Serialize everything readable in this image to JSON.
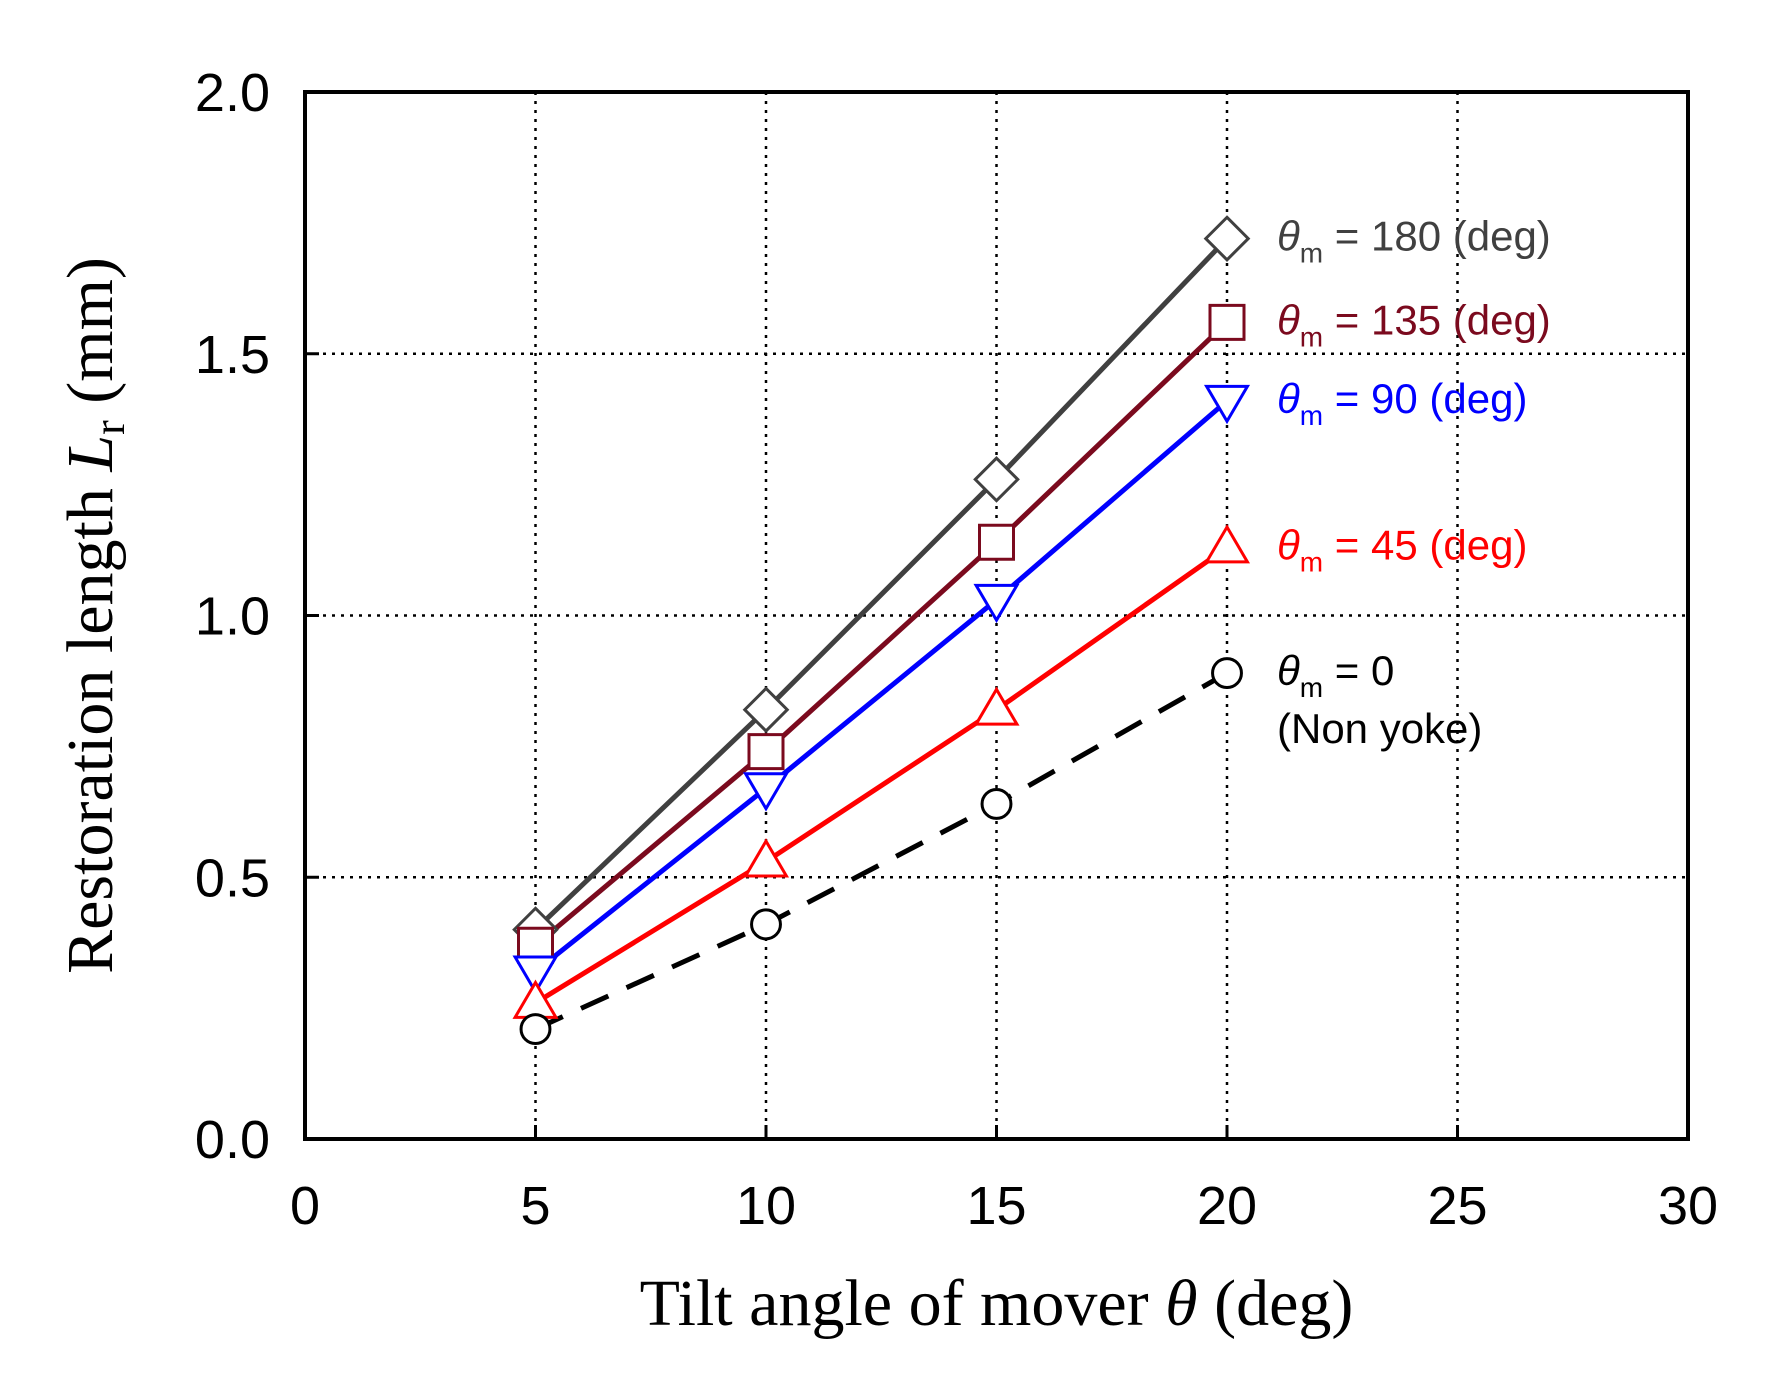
{
  "chart_data": {
    "type": "line",
    "title": "",
    "xlabel": {
      "main": "Tilt angle of mover ",
      "symbol": "θ",
      "unit": " (deg)"
    },
    "ylabel": {
      "main": "Restoration length ",
      "symbol": "L",
      "subscript": "r",
      "unit": " (mm)"
    },
    "xlim": [
      0,
      30
    ],
    "ylim": [
      0.0,
      2.0
    ],
    "x_ticks": [
      0,
      5,
      10,
      15,
      20,
      25,
      30
    ],
    "x_tick_labels": [
      "0",
      "5",
      "10",
      "15",
      "20",
      "25",
      "30"
    ],
    "y_ticks": [
      0.0,
      0.5,
      1.0,
      1.5,
      2.0
    ],
    "y_tick_labels": [
      "0.0",
      "0.5",
      "1.0",
      "1.5",
      "2.0"
    ],
    "grid": true,
    "x": [
      5,
      10,
      15,
      20
    ],
    "series": [
      {
        "name": "θm = 180 (deg)",
        "label_main": "θ",
        "label_sub": "m",
        "label_rest": " = 180 (deg)",
        "label_line2": "",
        "color": "#404040",
        "marker": "diamond",
        "dashed": false,
        "values": [
          0.4,
          0.82,
          1.26,
          1.72
        ]
      },
      {
        "name": "θm = 135 (deg)",
        "label_main": "θ",
        "label_sub": "m",
        "label_rest": " = 135 (deg)",
        "label_line2": "",
        "color": "#7b0a1e",
        "marker": "square",
        "dashed": false,
        "values": [
          0.37,
          0.74,
          1.14,
          1.56
        ]
      },
      {
        "name": "θm = 90 (deg)",
        "label_main": "θ",
        "label_sub": "m",
        "label_rest": " = 90 (deg)",
        "label_line2": "",
        "color": "#0000ff",
        "marker": "triangle-down",
        "dashed": false,
        "values": [
          0.32,
          0.67,
          1.03,
          1.41
        ]
      },
      {
        "name": "θm = 45 (deg)",
        "label_main": "θ",
        "label_sub": "m",
        "label_rest": " = 45 (deg)",
        "label_line2": "",
        "color": "#ff0000",
        "marker": "triangle-up",
        "dashed": false,
        "values": [
          0.26,
          0.53,
          0.82,
          1.13
        ]
      },
      {
        "name": "θm = 0 (Non yoke)",
        "label_main": "θ",
        "label_sub": "m",
        "label_rest": " = 0",
        "label_line2": "(Non yoke)",
        "color": "#000000",
        "marker": "circle",
        "dashed": true,
        "values": [
          0.21,
          0.41,
          0.64,
          0.89
        ]
      }
    ]
  }
}
